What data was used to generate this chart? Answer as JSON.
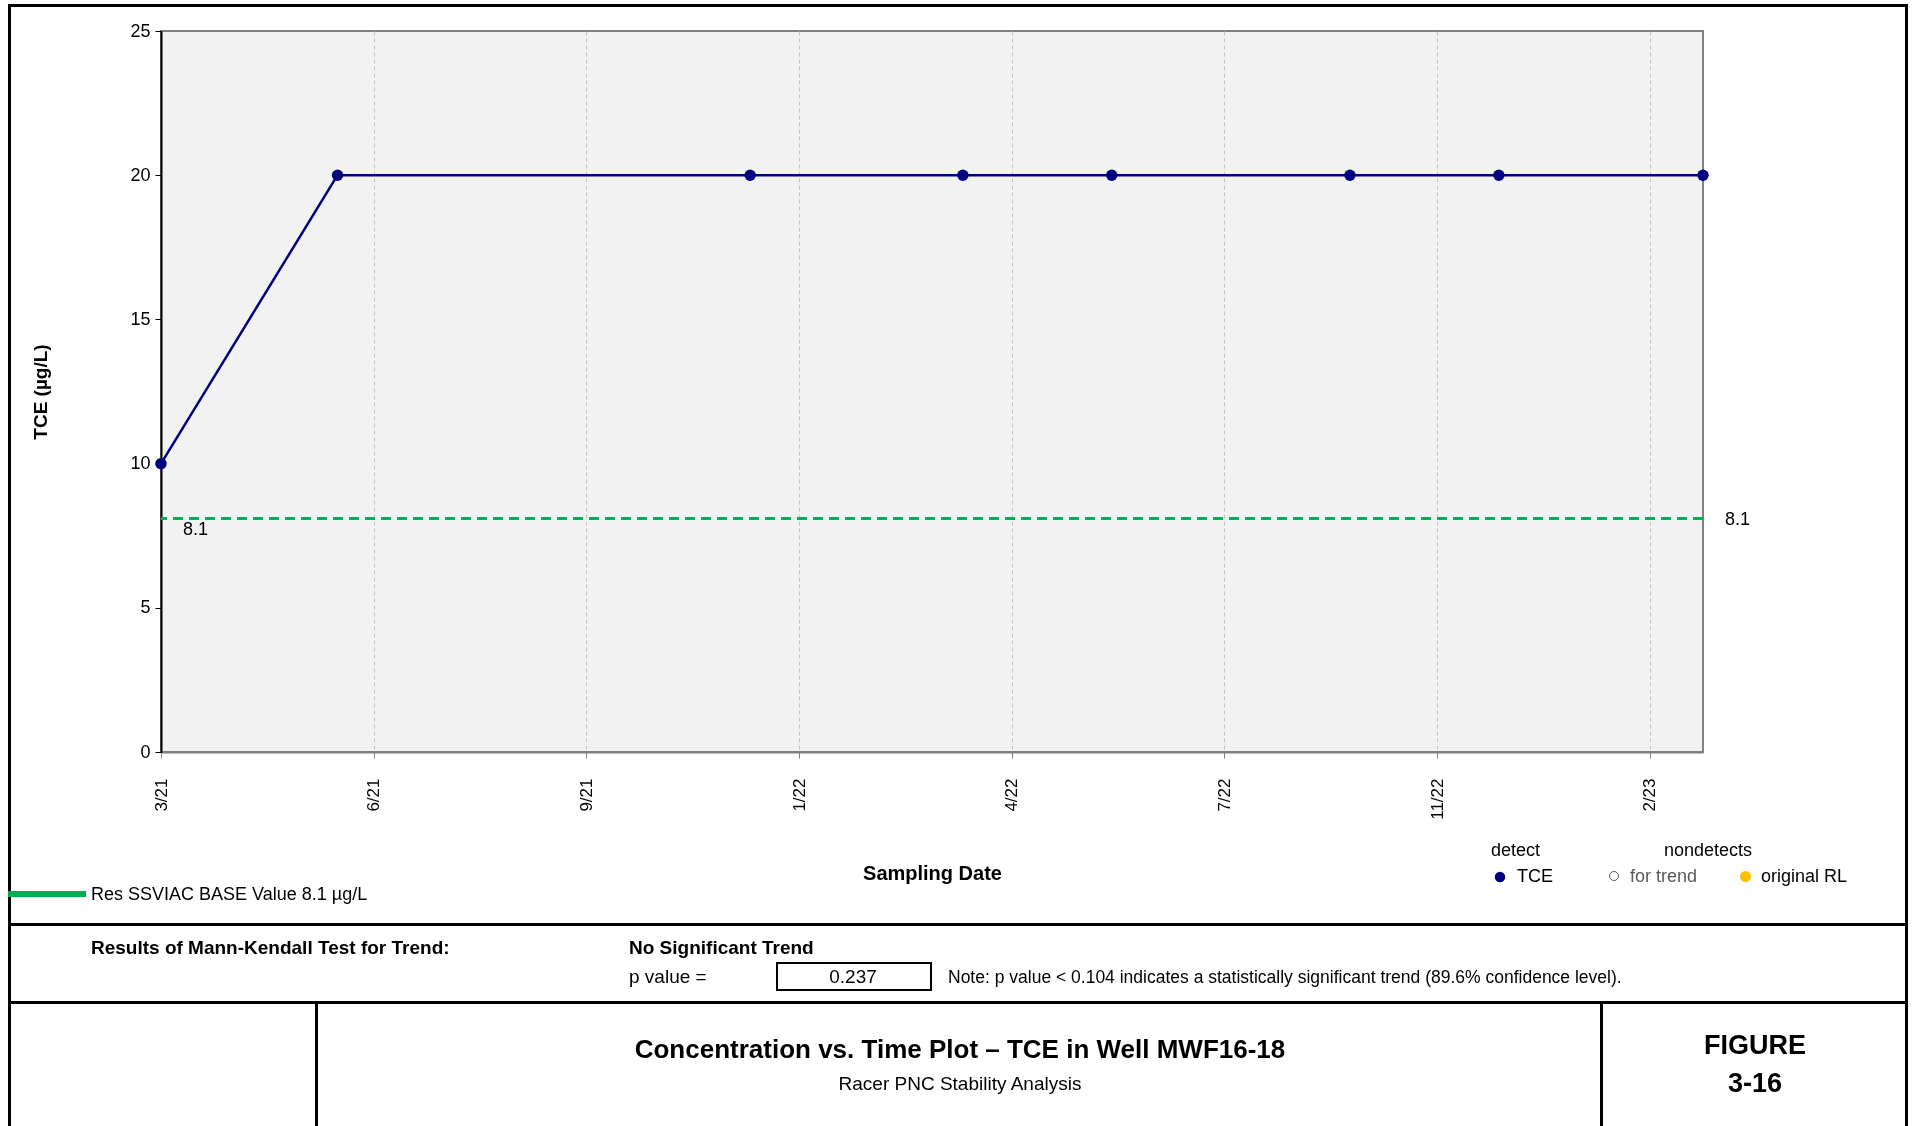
{
  "chart_data": {
    "type": "line",
    "title": "Concentration vs. Time Plot – TCE in Well MWF16-18",
    "subtitle": "Racer PNC Stability Analysis",
    "xlabel": "Sampling Date",
    "ylabel": "TCE (µg/L)",
    "legend_title": "detect",
    "x": [
      "2021-03-12",
      "2021-06-03",
      "2021-12-14",
      "2022-03-24",
      "2022-06-02",
      "2022-09-22",
      "2022-12-01",
      "2023-03-07"
    ],
    "series": [
      {
        "name": "TCE",
        "color": "#000080",
        "values": [
          10,
          20,
          20,
          20,
          20,
          20,
          20,
          20
        ]
      }
    ],
    "xlim": [
      "2021-03-12",
      "2023-03-07"
    ],
    "xticks": [
      {
        "value": "2021-03-12",
        "label": "3/21"
      },
      {
        "value": "2021-06-20",
        "label": "6/21"
      },
      {
        "value": "2021-09-28",
        "label": "9/21"
      },
      {
        "value": "2022-01-06",
        "label": "1/22"
      },
      {
        "value": "2022-04-16",
        "label": "4/22"
      },
      {
        "value": "2022-07-25",
        "label": "7/22"
      },
      {
        "value": "2022-11-02",
        "label": "11/22"
      },
      {
        "value": "2023-02-10",
        "label": "2/23"
      }
    ],
    "ylim": [
      0,
      25
    ],
    "yticks": [
      0,
      5,
      10,
      15,
      20,
      25
    ],
    "grid": "x",
    "marker": "circle",
    "line_style": "solid",
    "legend": "bottom right",
    "ref_lines": [
      {
        "axis": "y",
        "value": 8.1,
        "label": "8.1",
        "color": "#00b050",
        "line_style": "dashed"
      }
    ],
    "annotations": [
      "Res SSVIAC BASE Value 8.1 µg/L",
      "nondetects",
      "for trend",
      "original RL",
      "Results of Mann-Kendall Test for Trend:",
      "No Significant Trend",
      "p value =",
      "0.237",
      "Note:  p value < 0.104 indicates a statistically significant trend (89.6% confidence level).",
      "FIGURE",
      "3-16"
    ]
  }
}
